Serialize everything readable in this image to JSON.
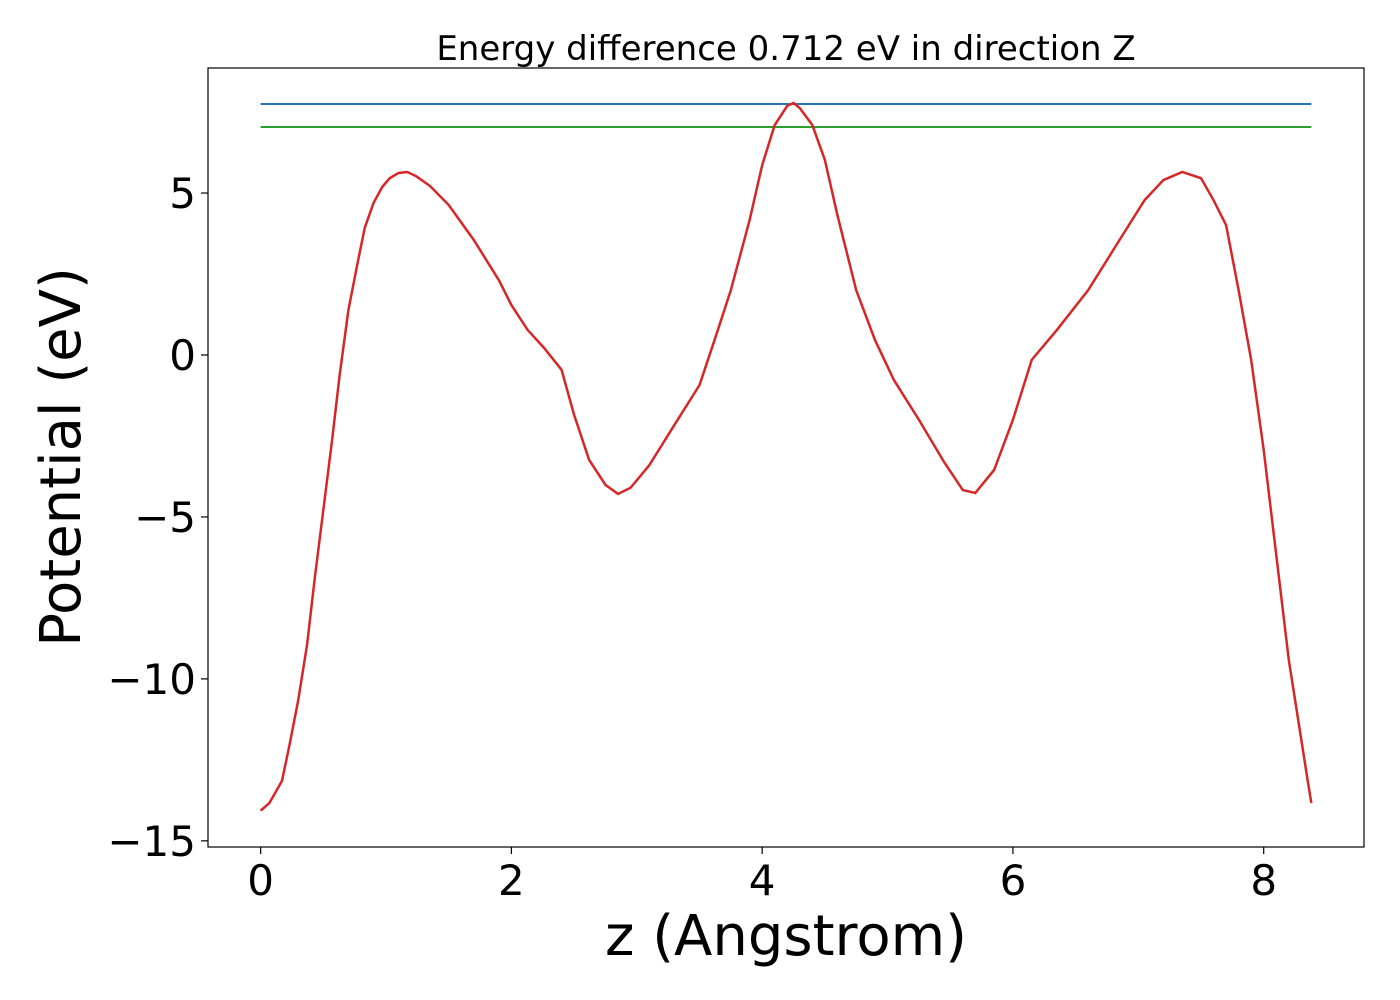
{
  "chart_data": {
    "type": "line",
    "title": "Energy difference 0.712 eV in direction Z",
    "xlabel": "z (Angstrom)",
    "ylabel": "Potential (eV)",
    "xlim": [
      -0.42,
      8.8
    ],
    "ylim": [
      -15.19,
      8.86
    ],
    "xticks": [
      0,
      2,
      4,
      6,
      8
    ],
    "yticks": [
      {
        "value": -15,
        "label": "−15"
      },
      {
        "value": -10,
        "label": "−10"
      },
      {
        "value": -5,
        "label": "−5"
      },
      0,
      5
    ],
    "series": [
      {
        "color": "#1f77b4",
        "x": [
          0,
          8.38
        ],
        "values": [
          7.75,
          7.75
        ]
      },
      {
        "color": "#2ca02c",
        "x": [
          0,
          8.38
        ],
        "values": [
          7.04,
          7.04
        ]
      },
      {
        "color": "#d62728",
        "x": [
          0,
          0.07,
          0.17,
          0.23,
          0.3,
          0.37,
          0.43,
          0.5,
          0.57,
          0.63,
          0.7,
          0.77,
          0.83,
          0.9,
          0.97,
          1.03,
          1.1,
          1.17,
          1.24,
          1.35,
          1.5,
          1.7,
          1.9,
          2.0,
          2.13,
          2.26,
          2.4,
          2.5,
          2.62,
          2.75,
          2.85,
          2.95,
          3.1,
          3.3,
          3.5,
          3.62,
          3.75,
          3.9,
          4.0,
          4.1,
          4.2,
          4.25,
          4.3,
          4.4,
          4.5,
          4.6,
          4.75,
          4.9,
          5.05,
          5.25,
          5.45,
          5.6,
          5.7,
          5.85,
          6.0,
          6.15,
          6.35,
          6.6,
          6.85,
          7.05,
          7.2,
          7.35,
          7.5,
          7.6,
          7.7,
          7.8,
          7.9,
          8.0,
          8.1,
          8.2,
          8.3,
          8.35,
          8.38
        ],
        "values": [
          -14.07,
          -13.83,
          -13.15,
          -12.04,
          -10.65,
          -8.95,
          -6.94,
          -4.78,
          -2.62,
          -0.62,
          1.39,
          2.78,
          3.92,
          4.69,
          5.19,
          5.46,
          5.62,
          5.65,
          5.52,
          5.22,
          4.63,
          3.55,
          2.31,
          1.54,
          0.77,
          0.22,
          -0.46,
          -1.85,
          -3.24,
          -4.01,
          -4.29,
          -4.1,
          -3.4,
          -2.16,
          -0.93,
          0.46,
          2.0,
          4.17,
          5.86,
          7.1,
          7.69,
          7.78,
          7.62,
          7.1,
          6.02,
          4.32,
          2.0,
          0.46,
          -0.77,
          -2.0,
          -3.3,
          -4.17,
          -4.26,
          -3.55,
          -2.0,
          -0.15,
          0.77,
          2.0,
          3.55,
          4.78,
          5.4,
          5.65,
          5.46,
          4.78,
          4.01,
          2.0,
          -0.15,
          -2.93,
          -6.17,
          -9.41,
          -11.88,
          -13.12,
          -13.83
        ]
      }
    ]
  }
}
